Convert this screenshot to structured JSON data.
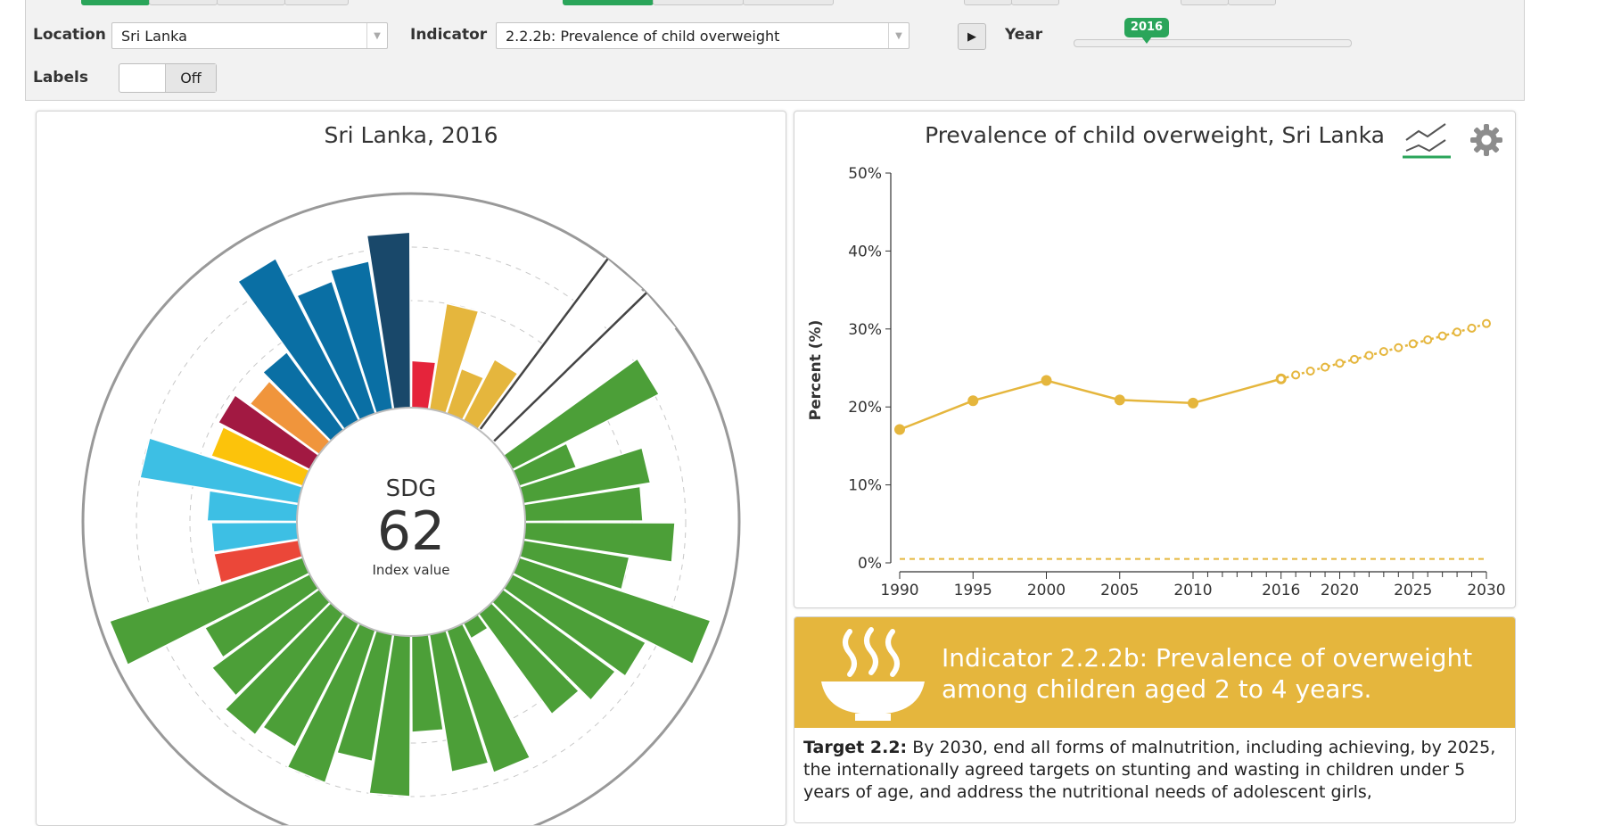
{
  "controls": {
    "location_label": "Location",
    "location_value": "Sri Lanka",
    "indicator_label": "Indicator",
    "indicator_value": "2.2.2b: Prevalence of child overweight",
    "play_icon": "play-icon",
    "year_label": "Year",
    "year_value": "2016",
    "labels_label": "Labels",
    "labels_value": "Off",
    "accent_color": "#2aa55a"
  },
  "radial": {
    "title": "Sri Lanka, 2016",
    "center_top": "SDG",
    "center_value": "62",
    "center_caption": "Index value"
  },
  "line_chart": {
    "title": "Prevalence of child overweight, Sri Lanka",
    "icons": [
      "trend-lines-icon",
      "gear-icon"
    ]
  },
  "chart_data": [
    {
      "type": "line",
      "title": "Prevalence of child overweight, Sri Lanka",
      "ylabel": "Percent (%)",
      "xlabel": "",
      "ylim": [
        0,
        50
      ],
      "xlim": [
        1990,
        2030
      ],
      "y_ticks": [
        "0%",
        "10%",
        "20%",
        "30%",
        "40%",
        "50%"
      ],
      "x_ticks": [
        "1990",
        "1995",
        "2000",
        "2005",
        "2010",
        "2016",
        "2020",
        "2025",
        "2030"
      ],
      "series": [
        {
          "style": "solid",
          "color": "#e5b63d",
          "x": [
            1990,
            1995,
            2000,
            2005,
            2010,
            2016
          ],
          "y": [
            17.1,
            20.8,
            23.4,
            20.9,
            20.5,
            23.6
          ]
        },
        {
          "style": "dotted",
          "color": "#e5b63d",
          "x": [
            2016,
            2017,
            2018,
            2019,
            2020,
            2021,
            2022,
            2023,
            2024,
            2025,
            2026,
            2027,
            2028,
            2029,
            2030
          ],
          "y": [
            23.6,
            24.1,
            24.6,
            25.1,
            25.6,
            26.1,
            26.6,
            27.1,
            27.6,
            28.1,
            28.6,
            29.1,
            29.6,
            30.1,
            30.7
          ]
        },
        {
          "style": "dashed",
          "color": "#e5b63d",
          "x": [
            1990,
            2030
          ],
          "y": [
            0.5,
            0.5
          ]
        }
      ]
    },
    {
      "type": "radial-bar",
      "title": "Sri Lanka, 2016",
      "rlim": [
        0,
        100
      ],
      "bars": [
        {
          "value": 22,
          "color": "#e5243b"
        },
        {
          "value": 50,
          "color": "#e5b63d"
        },
        {
          "value": 22,
          "color": "#e5b63d"
        },
        {
          "value": 32,
          "color": "#e5b63d"
        },
        {
          "value": 100,
          "color": "#333333"
        },
        {
          "value": 100,
          "color": "#333333"
        },
        {
          "value": 77,
          "color": "#4c9f38"
        },
        {
          "value": 28,
          "color": "#4c9f38"
        },
        {
          "value": 60,
          "color": "#4c9f38"
        },
        {
          "value": 55,
          "color": "#4c9f38"
        },
        {
          "value": 70,
          "color": "#4c9f38"
        },
        {
          "value": 50,
          "color": "#4c9f38"
        },
        {
          "value": 94,
          "color": "#4c9f38"
        },
        {
          "value": 70,
          "color": "#4c9f38"
        },
        {
          "value": 65,
          "color": "#4c9f38"
        },
        {
          "value": 58,
          "color": "#4c9f38"
        },
        {
          "value": 8,
          "color": "#4c9f38"
        },
        {
          "value": 70,
          "color": "#4c9f38"
        },
        {
          "value": 65,
          "color": "#4c9f38"
        },
        {
          "value": 45,
          "color": "#4c9f38"
        },
        {
          "value": 75,
          "color": "#4c9f38"
        },
        {
          "value": 60,
          "color": "#4c9f38"
        },
        {
          "value": 75,
          "color": "#4c9f38"
        },
        {
          "value": 65,
          "color": "#4c9f38"
        },
        {
          "value": 70,
          "color": "#4c9f38"
        },
        {
          "value": 62,
          "color": "#4c9f38"
        },
        {
          "value": 55,
          "color": "#4c9f38"
        },
        {
          "value": 95,
          "color": "#4c9f38"
        },
        {
          "value": 40,
          "color": "#eb4739"
        },
        {
          "value": 40,
          "color": "#3dbfe4"
        },
        {
          "value": 42,
          "color": "#3dbfe4"
        },
        {
          "value": 75,
          "color": "#3dbfe4"
        },
        {
          "value": 45,
          "color": "#fcc30b"
        },
        {
          "value": 48,
          "color": "#a21942"
        },
        {
          "value": 40,
          "color": "#f0953c"
        },
        {
          "value": 45,
          "color": "#0a6fa4"
        },
        {
          "value": 85,
          "color": "#0a6fa4"
        },
        {
          "value": 65,
          "color": "#0a6fa4"
        },
        {
          "value": 70,
          "color": "#0a6fa4"
        },
        {
          "value": 82,
          "color": "#19486a"
        }
      ]
    }
  ],
  "info": {
    "banner_title": "Indicator 2.2.2b: Prevalence of overweight among children aged 2 to 4 years.",
    "banner_icon": "soup-bowl-icon",
    "banner_color": "#e5b63d",
    "target_label": "Target 2.2:",
    "target_text": " By 2030, end all forms of malnutrition, including achieving, by 2025, the internationally agreed targets on stunting and wasting in children under 5 years of age, and address the nutritional needs of adolescent girls,"
  }
}
